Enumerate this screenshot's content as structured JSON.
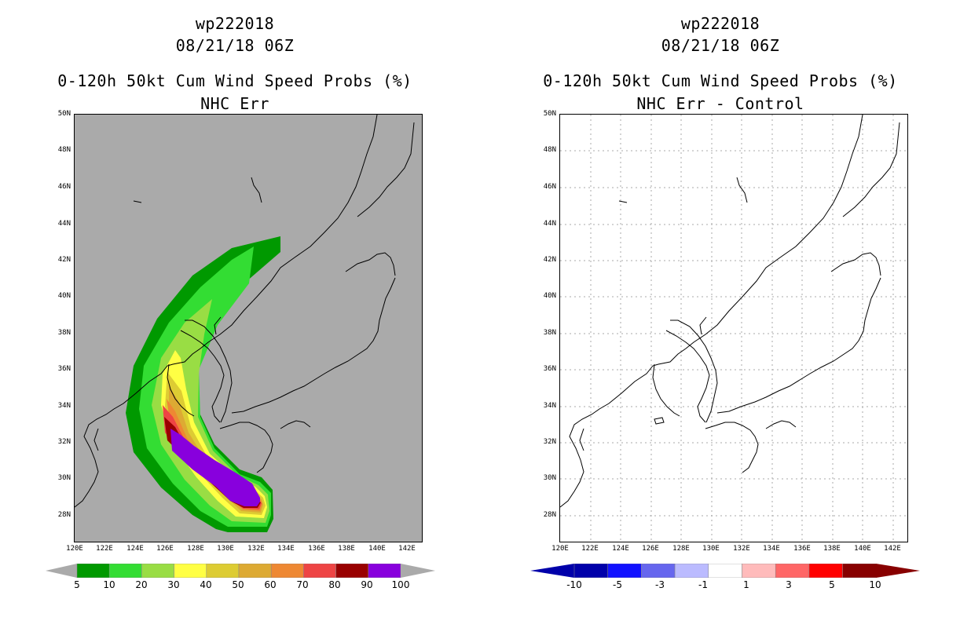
{
  "left_panel": {
    "title_line1": "wp222018",
    "title_line2": "08/21/18 06Z",
    "title_line3": "0-120h 50kt Cum Wind Speed Probs (%)",
    "title_line4": "NHC Err",
    "colorbar": {
      "colors": [
        "#009900",
        "#33dd33",
        "#99dd44",
        "#ffff44",
        "#ddcc33",
        "#ddaa33",
        "#ee8833",
        "#ee4444",
        "#990000",
        "#8800dd"
      ],
      "labels": [
        "5",
        "10",
        "20",
        "30",
        "40",
        "50",
        "60",
        "70",
        "80",
        "90",
        "100"
      ]
    }
  },
  "right_panel": {
    "title_line1": "wp222018",
    "title_line2": "08/21/18 06Z",
    "title_line3": "0-120h 50kt Cum Wind Speed Probs (%)",
    "title_line4": "NHC Err - Control",
    "colorbar": {
      "colors": [
        "#0000aa",
        "#1111ff",
        "#6666ee",
        "#bbbbff",
        "#ffffff",
        "#ffbbbb",
        "#ff6666",
        "#ff0000",
        "#880000"
      ],
      "labels": [
        "-10",
        "-5",
        "-3",
        "-1",
        "1",
        "3",
        "5",
        "10"
      ]
    }
  },
  "axes": {
    "lat_labels": [
      "50N",
      "48N",
      "46N",
      "44N",
      "42N",
      "40N",
      "38N",
      "36N",
      "34N",
      "32N",
      "30N",
      "28N"
    ],
    "lon_labels": [
      "120E",
      "122E",
      "124E",
      "126E",
      "128E",
      "130E",
      "132E",
      "134E",
      "136E",
      "138E",
      "140E",
      "142E"
    ],
    "lat_range": [
      26.6,
      50
    ],
    "lon_range": [
      120,
      143
    ]
  }
}
